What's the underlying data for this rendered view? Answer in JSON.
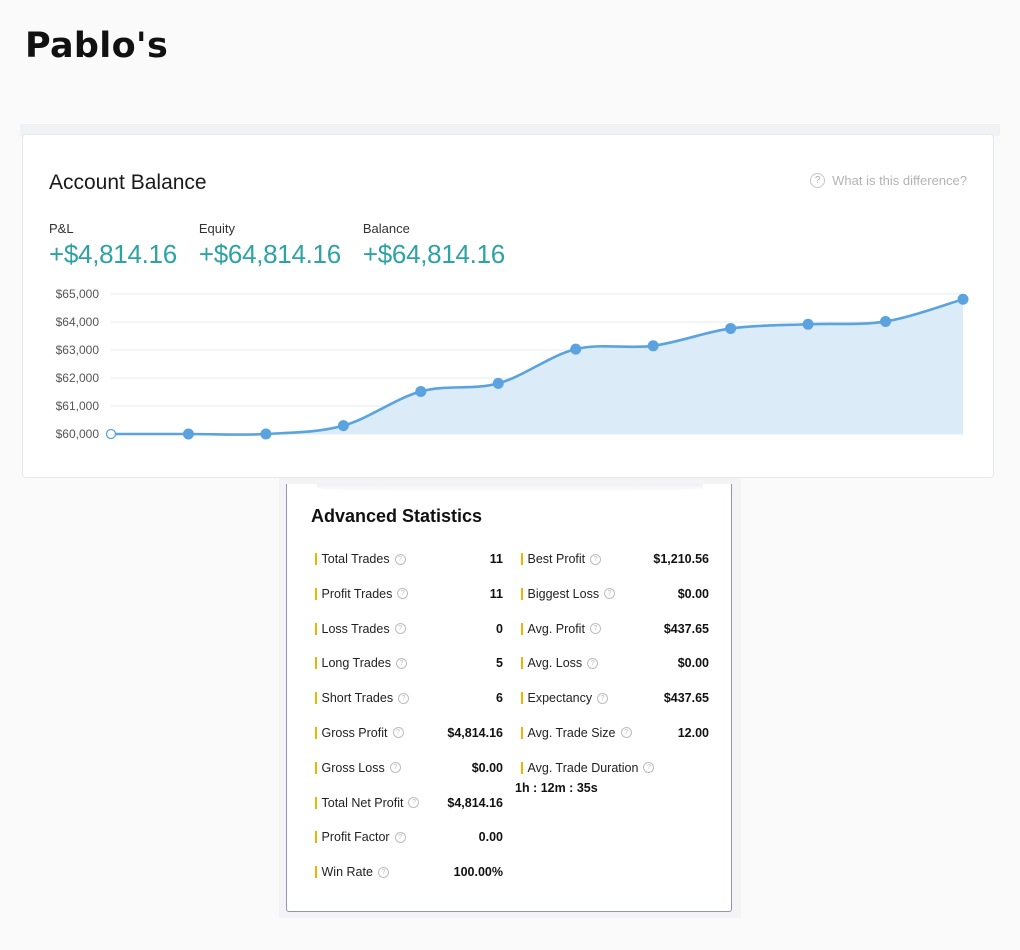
{
  "page": {
    "title": "Pablo's"
  },
  "account": {
    "title": "Account Balance",
    "help_text": "What is this difference?",
    "help_icon": "question-circle-icon",
    "metrics": [
      {
        "label": "P&L",
        "value": "+$4,814.16"
      },
      {
        "label": "Equity",
        "value": "+$64,814.16"
      },
      {
        "label": "Balance",
        "value": "+$64,814.16"
      }
    ],
    "accent_color": "#2ea3a3"
  },
  "chart_data": {
    "type": "area",
    "x": [
      0,
      1,
      2,
      3,
      4,
      5,
      6,
      7,
      8,
      9,
      10,
      11
    ],
    "values": [
      60000,
      60000,
      60000,
      60300,
      61520,
      61810,
      63030,
      63150,
      63770,
      63920,
      64020,
      64814.16
    ],
    "ylim": [
      60000,
      65000
    ],
    "yticks": [
      65000,
      64000,
      63000,
      62000,
      61000,
      60000
    ],
    "ytick_labels": [
      "$65,000",
      "$64,000",
      "$63,000",
      "$62,000",
      "$61,000",
      "$60,000"
    ],
    "grid": true,
    "line_color": "#5ba3de",
    "fill_color": "#dcebf8"
  },
  "stats": {
    "title": "Advanced Statistics",
    "left": [
      {
        "label": "Total Trades",
        "value": "11"
      },
      {
        "label": "Profit Trades",
        "value": "11"
      },
      {
        "label": "Loss Trades",
        "value": "0"
      },
      {
        "label": "Long Trades",
        "value": "5"
      },
      {
        "label": "Short Trades",
        "value": "6"
      },
      {
        "label": "Gross Profit",
        "value": "$4,814.16"
      },
      {
        "label": "Gross Loss",
        "value": "$0.00"
      },
      {
        "label": "Total Net Profit",
        "value": "$4,814.16"
      },
      {
        "label": "Profit Factor",
        "value": "0.00"
      },
      {
        "label": "Win Rate",
        "value": "100.00%"
      }
    ],
    "right": [
      {
        "label": "Best Profit",
        "value": "$1,210.56"
      },
      {
        "label": "Biggest Loss",
        "value": "$0.00"
      },
      {
        "label": "Avg. Profit",
        "value": "$437.65"
      },
      {
        "label": "Avg. Loss",
        "value": "$0.00"
      },
      {
        "label": "Expectancy",
        "value": "$437.65"
      },
      {
        "label": "Avg. Trade Size",
        "value": "12.00"
      }
    ],
    "duration": {
      "label": "Avg. Trade Duration",
      "value": "1h : 12m : 35s"
    },
    "marker_color": "#f0b400"
  }
}
